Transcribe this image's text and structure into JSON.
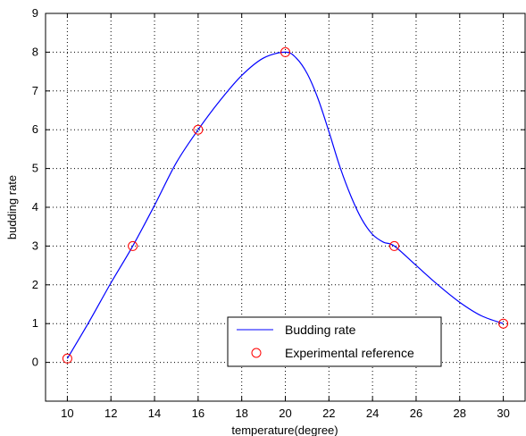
{
  "chart_data": {
    "type": "line",
    "title": "",
    "xlabel": "temperature(degree)",
    "ylabel": "budding rate",
    "xlim": [
      9,
      31
    ],
    "ylim": [
      -1,
      9
    ],
    "xticks": [
      10,
      12,
      14,
      16,
      18,
      20,
      22,
      24,
      26,
      28,
      30
    ],
    "yticks": [
      0,
      1,
      2,
      3,
      4,
      5,
      6,
      7,
      8,
      9
    ],
    "grid": true,
    "grid_style": "dotted",
    "legend_position": "bottom-right",
    "series": [
      {
        "name": "Budding rate",
        "kind": "line",
        "color": "#0000ff",
        "x": [
          10,
          11,
          12,
          13,
          14,
          15,
          16,
          17,
          18,
          19,
          20,
          20.5,
          21,
          21.5,
          22,
          22.5,
          23,
          23.5,
          24,
          24.5,
          25,
          26,
          27,
          28,
          29,
          30
        ],
        "y": [
          0.1,
          1.05,
          2.05,
          3.0,
          4.05,
          5.15,
          6.0,
          6.75,
          7.4,
          7.85,
          8.0,
          7.85,
          7.45,
          6.8,
          5.95,
          5.05,
          4.3,
          3.7,
          3.3,
          3.1,
          3.0,
          2.5,
          2.0,
          1.55,
          1.2,
          1.0
        ]
      },
      {
        "name": "Experimental reference",
        "kind": "marker",
        "marker": "circle",
        "color": "#ff0000",
        "x": [
          10,
          13,
          16,
          20,
          25,
          30
        ],
        "y": [
          0.1,
          3.0,
          6.0,
          8.0,
          3.0,
          1.0
        ]
      }
    ]
  }
}
